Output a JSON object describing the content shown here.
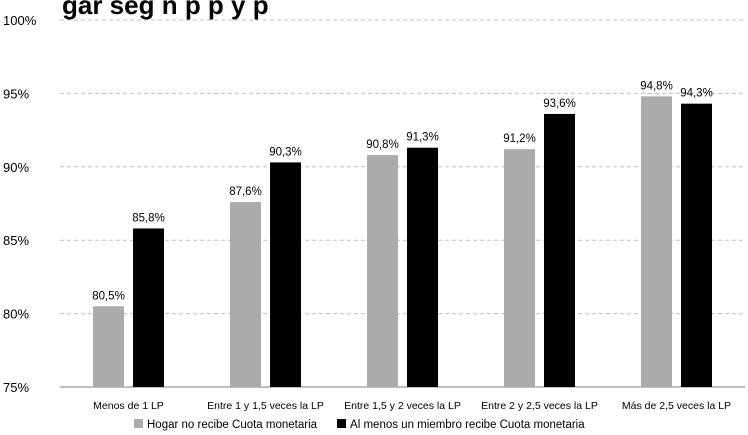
{
  "chart_data": {
    "type": "bar",
    "title": "gar seg n     p    p   y    p",
    "categories": [
      "Menos de 1 LP",
      "Entre 1 y 1,5 veces la LP",
      "Entre 1,5 y 2 veces la LP",
      "Entre 2 y 2,5 veces la LP",
      "Más de 2,5 veces la LP"
    ],
    "series": [
      {
        "name": "Hogar no recibe Cuota monetaria",
        "color": "#ababab",
        "values": [
          80.5,
          87.6,
          90.8,
          91.2,
          94.8
        ],
        "labels": [
          "80,5%",
          "87,6%",
          "90,8%",
          "91,2%",
          "94,8%"
        ]
      },
      {
        "name": "Al menos un miembro recibe Cuota monetaria",
        "color": "#000000",
        "values": [
          85.8,
          90.3,
          91.3,
          93.6,
          94.3
        ],
        "labels": [
          "85,8%",
          "90,3%",
          "91,3%",
          "93,6%",
          "94,3%"
        ]
      }
    ],
    "ylim": [
      75,
      100
    ],
    "yticks": [
      75,
      80,
      85,
      90,
      95,
      100
    ],
    "ytick_labels": [
      "75%",
      "80%",
      "85%",
      "90%",
      "95%",
      "100%"
    ],
    "grid": true,
    "legend_position": "bottom"
  }
}
